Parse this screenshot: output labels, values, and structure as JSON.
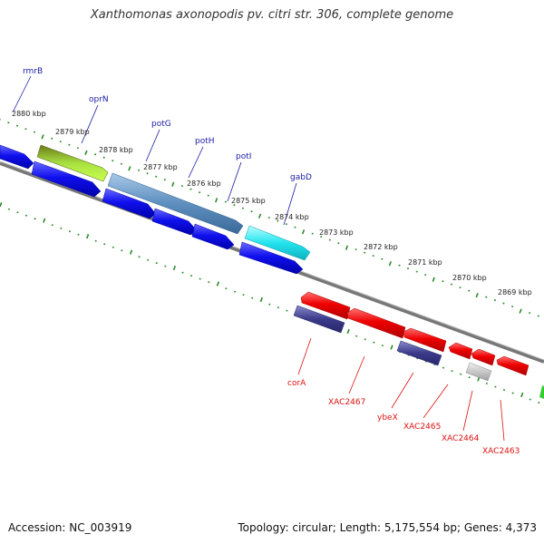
{
  "title": "Xanthomonas axonopodis pv. citri str. 306, complete genome",
  "footer": {
    "accession": "Accession: NC_003919",
    "topology": "Topology: circular; Length: 5,175,554 bp; Genes: 4,373"
  },
  "colors": {
    "forward_label": "#1a1aa8",
    "reverse_label": "#dd1111",
    "tick": "#2a8a2a",
    "backbone": "#777777"
  },
  "ruler": [
    "2880 kbp",
    "2879 kbp",
    "2878 kbp",
    "2877 kbp",
    "2876 kbp",
    "2875 kbp",
    "2874 kbp",
    "2873 kbp",
    "2872 kbp",
    "2871 kbp",
    "2870 kbp",
    "2869 kbp"
  ],
  "forward_labels": [
    "rmrB",
    "oprN",
    "potG",
    "potH",
    "potI",
    "gabD"
  ],
  "reverse_labels": [
    "corA",
    "XAC2467",
    "ybeX",
    "XAC2465",
    "XAC2464",
    "XAC2463"
  ]
}
